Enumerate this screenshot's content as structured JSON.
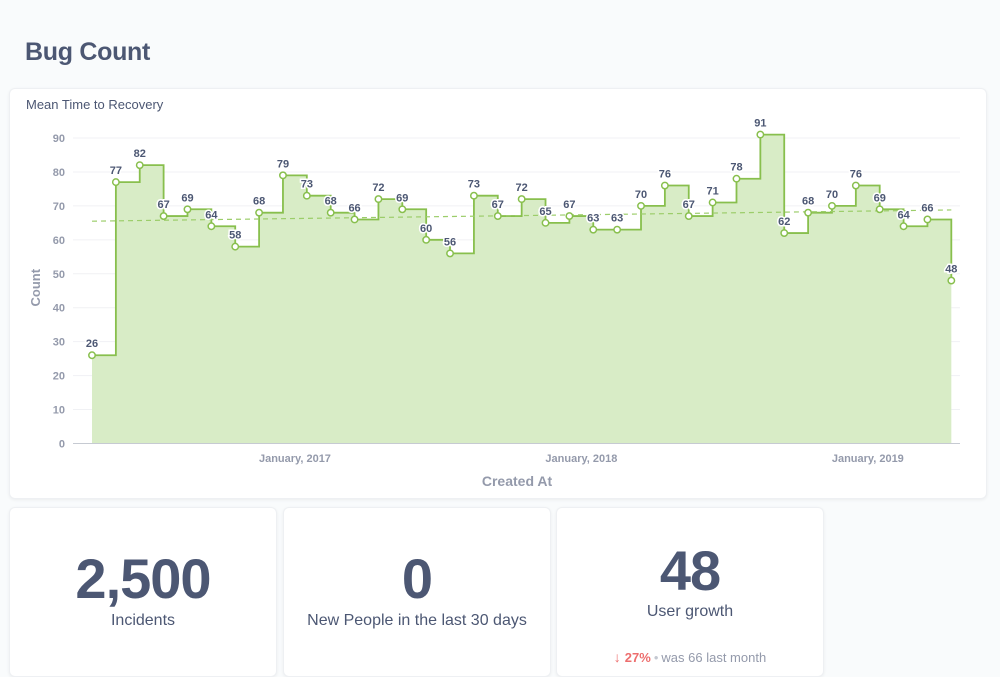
{
  "dashboard": {
    "title": "Bug Count"
  },
  "chart_card": {
    "title": "Mean Time to Recovery"
  },
  "chart_data": {
    "type": "area",
    "step": true,
    "ylabel": "Count",
    "xlabel": "Created At",
    "ylim": [
      0,
      90
    ],
    "yticks": [
      0,
      10,
      20,
      30,
      40,
      50,
      60,
      70,
      80,
      90
    ],
    "xticks": [
      "January, 2017",
      "January, 2018",
      "January, 2019"
    ],
    "xticks_index": [
      8,
      20,
      32
    ],
    "values": [
      26,
      77,
      82,
      67,
      69,
      64,
      58,
      68,
      79,
      73,
      68,
      66,
      72,
      69,
      60,
      56,
      73,
      67,
      72,
      65,
      67,
      63,
      63,
      70,
      76,
      67,
      71,
      78,
      91,
      62,
      68,
      70,
      76,
      69,
      64,
      66,
      48
    ],
    "trend": [
      65.5,
      68.8
    ],
    "colors": {
      "line": "#88bf4d",
      "fill": "#d8ecc6",
      "trend": "#9ccd6a"
    }
  },
  "scalars": [
    {
      "value": "2,500",
      "label": "Incidents"
    },
    {
      "value": "0",
      "label": "New People in the last 30 days"
    },
    {
      "value": "48",
      "label": "User growth",
      "change": "27%",
      "was_text": "was 66",
      "period": "last month"
    }
  ]
}
